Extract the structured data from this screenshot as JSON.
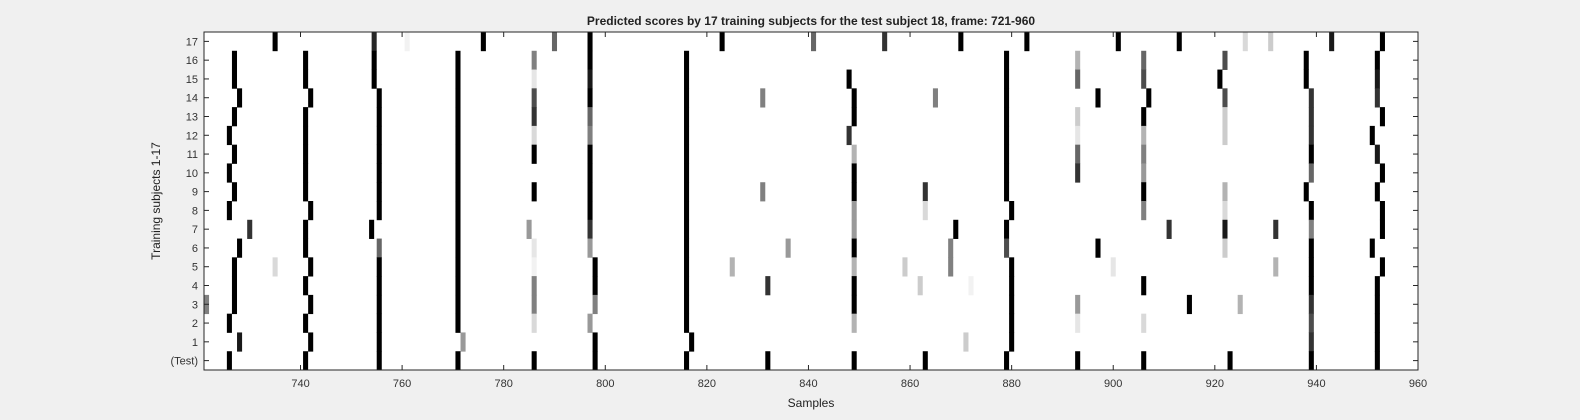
{
  "chart_data": {
    "type": "heatmap",
    "title": "Predicted scores by 17 training subjects for the test subject 18, frame: 721-960",
    "xlabel": "Samples",
    "ylabel": "Training subjects 1-17",
    "xlim": [
      721,
      960
    ],
    "x_ticks": [
      740,
      760,
      780,
      800,
      820,
      840,
      860,
      880,
      900,
      920,
      940,
      960
    ],
    "row_labels": [
      "17",
      "16",
      "15",
      "14",
      "13",
      "12",
      "11",
      "10",
      "9",
      "8",
      "7",
      "6",
      "5",
      "4",
      "3",
      "2",
      "1",
      "(Test)"
    ],
    "colors": {
      "background": "#f0f0f0",
      "plot": "#ffffff",
      "axis": "#262626"
    },
    "rows": [
      {
        "label": "17",
        "marks": [
          [
            735,
            1
          ],
          [
            754.5,
            0.85
          ],
          [
            761,
            0.05
          ],
          [
            776,
            1
          ],
          [
            790,
            0.6
          ],
          [
            797,
            1
          ],
          [
            823,
            1
          ],
          [
            841,
            0.6
          ],
          [
            855,
            0.8
          ],
          [
            870,
            1
          ],
          [
            883,
            1
          ],
          [
            901,
            1
          ],
          [
            913,
            1
          ],
          [
            926,
            0.15
          ],
          [
            931,
            0.2
          ],
          [
            943,
            0.9
          ],
          [
            953,
            1
          ]
        ]
      },
      {
        "label": "16",
        "marks": [
          [
            727,
            1
          ],
          [
            741,
            1
          ],
          [
            754.5,
            1
          ],
          [
            771,
            1
          ],
          [
            786,
            0.5
          ],
          [
            797,
            1
          ],
          [
            816,
            1
          ],
          [
            879,
            1
          ],
          [
            893,
            0.3
          ],
          [
            906,
            0.6
          ],
          [
            922,
            0.7
          ],
          [
            938,
            1
          ],
          [
            952,
            1
          ]
        ]
      },
      {
        "label": "15",
        "marks": [
          [
            727,
            1
          ],
          [
            741,
            1
          ],
          [
            754.5,
            1
          ],
          [
            771,
            1
          ],
          [
            786,
            0.1
          ],
          [
            797,
            0.9
          ],
          [
            816,
            1
          ],
          [
            848,
            1
          ],
          [
            879,
            1
          ],
          [
            893,
            0.6
          ],
          [
            906,
            0.7
          ],
          [
            921,
            1
          ],
          [
            938,
            1
          ],
          [
            952,
            0.9
          ]
        ]
      },
      {
        "label": "14",
        "marks": [
          [
            728,
            1
          ],
          [
            742,
            1
          ],
          [
            755.5,
            1
          ],
          [
            771,
            1
          ],
          [
            786,
            0.7
          ],
          [
            797,
            1
          ],
          [
            816,
            1
          ],
          [
            831,
            0.5
          ],
          [
            849,
            1
          ],
          [
            865,
            0.5
          ],
          [
            879,
            1
          ],
          [
            897,
            1
          ],
          [
            907,
            1
          ],
          [
            922,
            0.7
          ],
          [
            939,
            0.8
          ],
          [
            952,
            0.8
          ]
        ]
      },
      {
        "label": "13",
        "marks": [
          [
            727,
            1
          ],
          [
            741,
            1
          ],
          [
            755.5,
            1
          ],
          [
            771,
            1
          ],
          [
            786,
            0.8
          ],
          [
            797,
            0.6
          ],
          [
            816,
            1
          ],
          [
            849,
            1
          ],
          [
            879,
            1
          ],
          [
            893,
            0.2
          ],
          [
            906,
            1
          ],
          [
            922,
            0.2
          ],
          [
            939,
            0.8
          ],
          [
            953,
            1
          ]
        ]
      },
      {
        "label": "12",
        "marks": [
          [
            726,
            1
          ],
          [
            741,
            1
          ],
          [
            755.5,
            1
          ],
          [
            771,
            1
          ],
          [
            786,
            0.15
          ],
          [
            797,
            0.5
          ],
          [
            816,
            1
          ],
          [
            848,
            0.8
          ],
          [
            879,
            1
          ],
          [
            893,
            0.1
          ],
          [
            906,
            0.3
          ],
          [
            922,
            0.2
          ],
          [
            939,
            0.8
          ],
          [
            951,
            1
          ]
        ]
      },
      {
        "label": "11",
        "marks": [
          [
            727,
            1
          ],
          [
            741,
            1
          ],
          [
            755.5,
            1
          ],
          [
            771,
            1
          ],
          [
            786,
            1
          ],
          [
            797,
            1
          ],
          [
            816,
            1
          ],
          [
            849,
            0.3
          ],
          [
            879,
            1
          ],
          [
            893,
            0.6
          ],
          [
            906,
            0.5
          ],
          [
            939,
            1
          ],
          [
            952,
            0.9
          ]
        ]
      },
      {
        "label": "10",
        "marks": [
          [
            726,
            1
          ],
          [
            741,
            1
          ],
          [
            755.5,
            1
          ],
          [
            771,
            1
          ],
          [
            797,
            1
          ],
          [
            816,
            1
          ],
          [
            849,
            1
          ],
          [
            879,
            1
          ],
          [
            893,
            0.8
          ],
          [
            906,
            0.4
          ],
          [
            939,
            0.6
          ],
          [
            953,
            1
          ]
        ]
      },
      {
        "label": "9",
        "marks": [
          [
            727,
            1
          ],
          [
            741,
            1
          ],
          [
            755.5,
            1
          ],
          [
            771,
            1
          ],
          [
            786,
            1
          ],
          [
            797,
            1
          ],
          [
            816,
            1
          ],
          [
            831,
            0.5
          ],
          [
            849,
            1
          ],
          [
            863,
            0.8
          ],
          [
            879,
            1
          ],
          [
            906,
            1
          ],
          [
            922,
            0.3
          ],
          [
            938,
            1
          ],
          [
            952,
            1
          ]
        ]
      },
      {
        "label": "8",
        "marks": [
          [
            726,
            1
          ],
          [
            742,
            1
          ],
          [
            755.5,
            1
          ],
          [
            771,
            1
          ],
          [
            797,
            1
          ],
          [
            816,
            1
          ],
          [
            849,
            0.4
          ],
          [
            863,
            0.15
          ],
          [
            880,
            1
          ],
          [
            906,
            0.5
          ],
          [
            922,
            0.15
          ],
          [
            939,
            1
          ],
          [
            953,
            1
          ]
        ]
      },
      {
        "label": "7",
        "marks": [
          [
            730,
            0.8
          ],
          [
            741,
            1
          ],
          [
            754,
            1
          ],
          [
            771,
            1
          ],
          [
            785,
            0.4
          ],
          [
            797,
            0.8
          ],
          [
            816,
            1
          ],
          [
            849,
            0.4
          ],
          [
            869,
            1
          ],
          [
            879,
            1
          ],
          [
            911,
            0.8
          ],
          [
            922,
            0.9
          ],
          [
            932,
            0.8
          ],
          [
            939,
            0.5
          ],
          [
            953,
            1
          ]
        ]
      },
      {
        "label": "6",
        "marks": [
          [
            728,
            1
          ],
          [
            741,
            1
          ],
          [
            755.5,
            0.6
          ],
          [
            771,
            1
          ],
          [
            786,
            0.1
          ],
          [
            797,
            0.4
          ],
          [
            816,
            1
          ],
          [
            836,
            0.4
          ],
          [
            849,
            1
          ],
          [
            868,
            0.5
          ],
          [
            879,
            0.7
          ],
          [
            897,
            1
          ],
          [
            922,
            0.2
          ],
          [
            939,
            1
          ],
          [
            951,
            1
          ]
        ]
      },
      {
        "label": "5",
        "marks": [
          [
            727,
            1
          ],
          [
            735,
            0.15
          ],
          [
            742,
            1
          ],
          [
            755.5,
            1
          ],
          [
            771,
            1
          ],
          [
            786,
            0.05
          ],
          [
            798,
            1
          ],
          [
            816,
            1
          ],
          [
            825,
            0.3
          ],
          [
            849,
            0.3
          ],
          [
            859,
            0.2
          ],
          [
            868,
            0.5
          ],
          [
            880,
            1
          ],
          [
            900,
            0.1
          ],
          [
            932,
            0.3
          ],
          [
            939,
            1
          ],
          [
            953,
            1
          ]
        ]
      },
      {
        "label": "4",
        "marks": [
          [
            727,
            1
          ],
          [
            741,
            1
          ],
          [
            755.5,
            1
          ],
          [
            771,
            1
          ],
          [
            786,
            0.5
          ],
          [
            798,
            1
          ],
          [
            816,
            1
          ],
          [
            832,
            0.8
          ],
          [
            849,
            1
          ],
          [
            862,
            0.2
          ],
          [
            872,
            0.05
          ],
          [
            880,
            1
          ],
          [
            906,
            1
          ],
          [
            939,
            1
          ],
          [
            952,
            1
          ]
        ]
      },
      {
        "label": "3",
        "marks": [
          [
            721,
            0.5
          ],
          [
            727,
            1
          ],
          [
            742,
            1
          ],
          [
            755.5,
            1
          ],
          [
            771,
            1
          ],
          [
            786,
            0.5
          ],
          [
            798,
            0.5
          ],
          [
            816,
            1
          ],
          [
            849,
            1
          ],
          [
            880,
            1
          ],
          [
            893,
            0.4
          ],
          [
            915,
            1
          ],
          [
            925,
            0.3
          ],
          [
            939,
            0.8
          ],
          [
            952,
            1
          ]
        ]
      },
      {
        "label": "2",
        "marks": [
          [
            726,
            1
          ],
          [
            741,
            1
          ],
          [
            755.5,
            1
          ],
          [
            771,
            1
          ],
          [
            786,
            0.15
          ],
          [
            797,
            0.4
          ],
          [
            816,
            1
          ],
          [
            849,
            0.3
          ],
          [
            880,
            1
          ],
          [
            893,
            0.1
          ],
          [
            906,
            0.15
          ],
          [
            939,
            0.7
          ],
          [
            952,
            1
          ]
        ]
      },
      {
        "label": "1",
        "marks": [
          [
            728,
            0.9
          ],
          [
            742,
            1
          ],
          [
            755.5,
            1
          ],
          [
            772,
            0.4
          ],
          [
            798,
            1
          ],
          [
            817,
            1
          ],
          [
            871,
            0.2
          ],
          [
            880,
            1
          ],
          [
            939,
            0.8
          ],
          [
            952,
            1
          ]
        ]
      },
      {
        "label": "(Test)",
        "marks": [
          [
            726,
            1
          ],
          [
            741,
            1
          ],
          [
            755.5,
            1
          ],
          [
            771,
            1
          ],
          [
            786,
            1
          ],
          [
            798,
            1
          ],
          [
            816,
            1
          ],
          [
            832,
            1
          ],
          [
            849,
            1
          ],
          [
            863,
            1
          ],
          [
            879,
            1
          ],
          [
            893,
            1
          ],
          [
            906,
            1
          ],
          [
            923,
            1
          ],
          [
            939,
            1
          ],
          [
            952,
            1
          ]
        ]
      }
    ]
  }
}
